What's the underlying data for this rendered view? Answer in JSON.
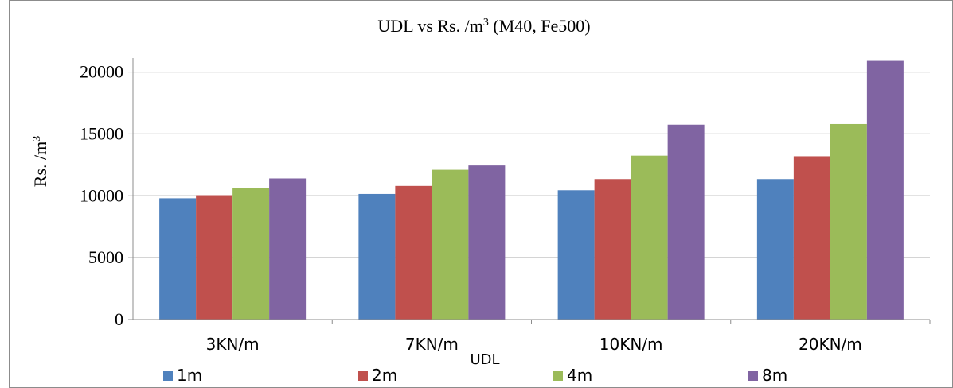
{
  "chart_data": {
    "type": "bar",
    "title": "UDL vs Rs. /m",
    "title_sup": "3",
    "title_suffix": " (M40, Fe500)",
    "xlabel": "UDL",
    "ylabel": "Rs. /m",
    "ylabel_sup": "3",
    "ylim": [
      0,
      21000
    ],
    "yticks": [
      "0",
      "5000",
      "10000",
      "15000",
      "20000"
    ],
    "grid": true,
    "legend_position": "bottom",
    "categories": [
      "3KN/m",
      "7KN/m",
      "10KN/m",
      "20KN/m"
    ],
    "series": [
      {
        "name": "1m",
        "color": "#4f81bd",
        "values": [
          9800,
          10150,
          10450,
          11350
        ]
      },
      {
        "name": "2m",
        "color": "#c0504d",
        "values": [
          10050,
          10800,
          11350,
          13200
        ]
      },
      {
        "name": "4m",
        "color": "#9bbb59",
        "values": [
          10650,
          12100,
          13250,
          15800
        ]
      },
      {
        "name": "8m",
        "color": "#8064a2",
        "values": [
          11400,
          12450,
          15750,
          20900
        ]
      }
    ]
  }
}
